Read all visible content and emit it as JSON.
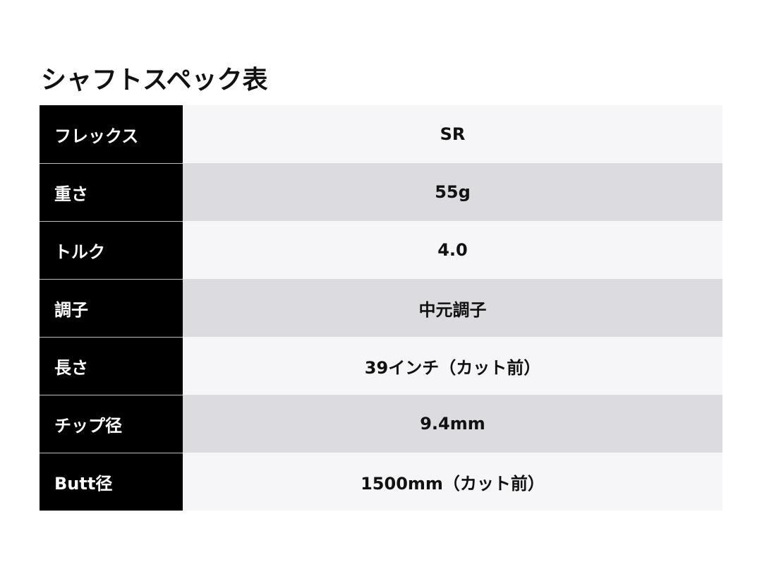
{
  "title": "シャフトスペック表",
  "rows": [
    {
      "label": "フレックス",
      "value": "SR"
    },
    {
      "label": "重さ",
      "value": "55g"
    },
    {
      "label": "トルク",
      "value": "4.0"
    },
    {
      "label": "調子",
      "value": "中元調子"
    },
    {
      "label": "長さ",
      "value": "39インチ（カット前）"
    },
    {
      "label": "チップ径",
      "value": "9.4mm"
    },
    {
      "label": "Butt径",
      "value": "1500mm（カット前）"
    }
  ],
  "colors": {
    "label_bg": "#000000",
    "row_light": "#f6f6f8",
    "row_dark": "#dcdce0"
  }
}
